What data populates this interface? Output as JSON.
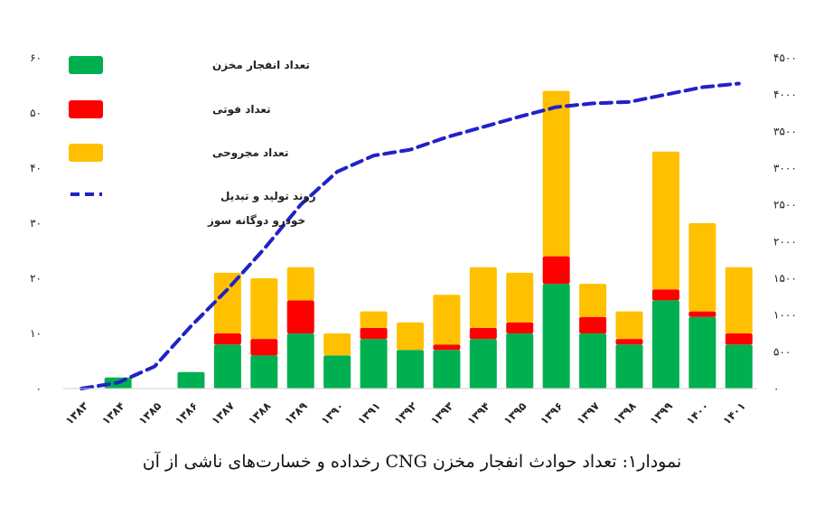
{
  "caption": "نمودار۱: تعداد حوادث انفجار مخزن CNG رخداده و خسارت‌های ناشی از آن",
  "chart_data": {
    "type": "bar",
    "stacked": true,
    "categories": [
      "۱۳۸۳",
      "۱۳۸۴",
      "۱۳۸۵",
      "۱۳۸۶",
      "۱۳۸۷",
      "۱۳۸۸",
      "۱۳۸۹",
      "۱۳۹۰",
      "۱۳۹۱",
      "۱۳۹۲",
      "۱۳۹۳",
      "۱۳۹۴",
      "۱۳۹۵",
      "۱۳۹۶",
      "۱۳۹۷",
      "۱۳۹۸",
      "۱۳۹۹",
      "۱۴۰۰",
      "۱۴۰۱"
    ],
    "series": [
      {
        "name": "تعداد انفجار مخزن",
        "color": "#00b050",
        "axis": "left",
        "values": [
          0,
          2,
          0,
          3,
          8,
          6,
          10,
          6,
          9,
          7,
          7,
          9,
          10,
          19,
          10,
          8,
          16,
          13,
          8
        ]
      },
      {
        "name": "تعداد فوتی",
        "color": "#ff0000",
        "axis": "left",
        "values": [
          0,
          0,
          0,
          0,
          2,
          3,
          6,
          0,
          2,
          0,
          1,
          2,
          2,
          5,
          3,
          1,
          2,
          1,
          2
        ]
      },
      {
        "name": "تعداد مجروحی",
        "color": "#ffc000",
        "axis": "left",
        "values": [
          0,
          0,
          0,
          0,
          11,
          11,
          6,
          4,
          3,
          5,
          9,
          11,
          9,
          30,
          6,
          5,
          25,
          16,
          12
        ]
      },
      {
        "name": "روند تولید و تبدیل خودرو دوگانه سوز",
        "name_line2": "خودرو  دوگانه سوز",
        "type": "line",
        "dashed": true,
        "color": "#1f22c8",
        "axis": "right",
        "values": [
          0,
          80,
          300,
          850,
          1350,
          1900,
          2500,
          2950,
          3170,
          3250,
          3420,
          3560,
          3700,
          3830,
          3880,
          3900,
          4000,
          4100,
          4150
        ]
      }
    ],
    "y_left": {
      "min": 0,
      "max": 60,
      "ticks": [
        "۰",
        "۱۰",
        "۲۰",
        "۳۰",
        "۴۰",
        "۵۰",
        "۶۰"
      ]
    },
    "y_right": {
      "min": 0,
      "max": 4500,
      "ticks": [
        "۰",
        "۵۰۰",
        "۱۰۰۰",
        "۱۵۰۰",
        "۲۰۰۰",
        "۲۵۰۰",
        "۳۰۰۰",
        "۳۵۰۰",
        "۴۰۰۰",
        "۴۵۰۰"
      ]
    },
    "grid": false,
    "legend": "top-left"
  }
}
